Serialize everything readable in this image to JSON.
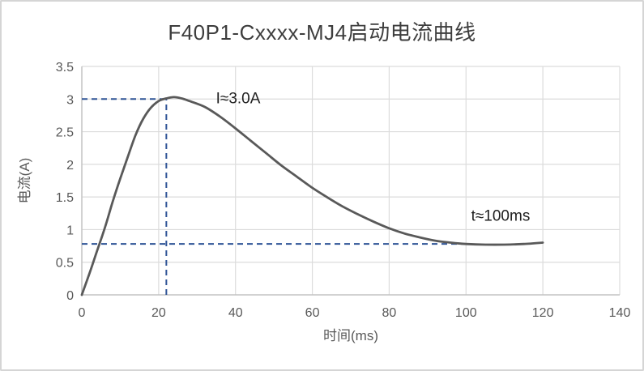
{
  "chart_data": {
    "type": "line",
    "title": "F40P1-Cxxxx-MJ4启动电流曲线",
    "xlabel": "时间(ms)",
    "ylabel": "电流(A)",
    "xlim": [
      0,
      140
    ],
    "ylim": [
      0,
      3.5
    ],
    "x_ticks": [
      0,
      20,
      40,
      60,
      80,
      100,
      120,
      140
    ],
    "y_ticks": [
      0,
      0.5,
      1,
      1.5,
      2,
      2.5,
      3,
      3.5
    ],
    "y_tick_labels": [
      "0",
      "0.5",
      "1",
      "1.5",
      "2",
      "2.5",
      "3",
      "3.5"
    ],
    "grid": true,
    "legend_position": "none",
    "series": [
      {
        "name": "启动电流",
        "color": "#595959",
        "points": [
          [
            0,
            0
          ],
          [
            2,
            0.33
          ],
          [
            4,
            0.68
          ],
          [
            6,
            1.03
          ],
          [
            8,
            1.42
          ],
          [
            10,
            1.78
          ],
          [
            12,
            2.12
          ],
          [
            14,
            2.45
          ],
          [
            16,
            2.7
          ],
          [
            18,
            2.87
          ],
          [
            20,
            2.97
          ],
          [
            22,
            3.01
          ],
          [
            24,
            3.03
          ],
          [
            26,
            3.01
          ],
          [
            28,
            2.97
          ],
          [
            32,
            2.88
          ],
          [
            36,
            2.73
          ],
          [
            40,
            2.55
          ],
          [
            44,
            2.36
          ],
          [
            48,
            2.17
          ],
          [
            52,
            1.98
          ],
          [
            56,
            1.81
          ],
          [
            60,
            1.64
          ],
          [
            64,
            1.49
          ],
          [
            68,
            1.35
          ],
          [
            72,
            1.23
          ],
          [
            76,
            1.12
          ],
          [
            80,
            1.02
          ],
          [
            84,
            0.94
          ],
          [
            88,
            0.88
          ],
          [
            92,
            0.83
          ],
          [
            96,
            0.8
          ],
          [
            100,
            0.78
          ],
          [
            105,
            0.77
          ],
          [
            110,
            0.77
          ],
          [
            115,
            0.78
          ],
          [
            120,
            0.8
          ]
        ]
      }
    ],
    "annotations": {
      "peak_label": {
        "text": "I≈3.0A",
        "x": 40.7,
        "y": 3.02
      },
      "settle_label": {
        "text": "t≈100ms",
        "x": 109,
        "y": 1.22
      },
      "guide_lines": [
        {
          "orientation": "horizontal",
          "y": 3.0,
          "x1": 0,
          "x2": 22
        },
        {
          "orientation": "vertical",
          "x": 22,
          "y1": 0,
          "y2": 3.0
        },
        {
          "orientation": "horizontal",
          "y": 0.78,
          "x1": 0,
          "x2": 101
        }
      ]
    }
  },
  "styles": {
    "curve_color": "#595959",
    "guide_color": "#2F5496",
    "grid_color": "#DCDCDC",
    "axis_line_color": "#C3C3C3",
    "tick_text_color": "#595959",
    "axis_title_color": "#595959",
    "annotation_text_color": "#1f1f1f",
    "title_color": "#3d3d3d",
    "background": "#ffffff"
  }
}
